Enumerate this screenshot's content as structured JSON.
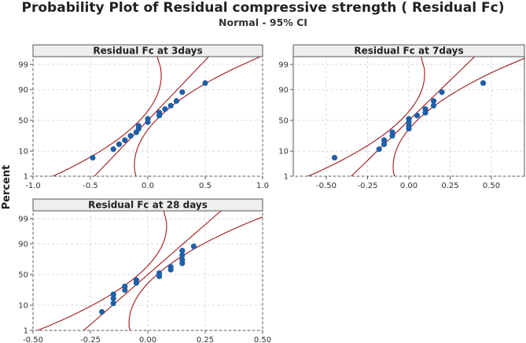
{
  "title": "Probability Plot of Residual compressive strength ( Residual Fc)",
  "subtitle": "Normal - 95% CI",
  "ylabel": "Percent",
  "colors": {
    "point": "#1f5fa8",
    "ci": "#a01818",
    "grid": "#d8d8d8",
    "axis": "#555555",
    "strip": "#eeeeee"
  },
  "chart_data": [
    {
      "type": "scatter",
      "title": "Residual Fc at 3days",
      "xlim": [
        -1.0,
        1.0
      ],
      "xticks": [
        -1.0,
        -0.5,
        0.0,
        0.5,
        1.0
      ],
      "xtick_labels": [
        "-1.0",
        "-0.5",
        "0.0",
        "0.5",
        "1.0"
      ],
      "yticks": [
        1,
        10,
        50,
        90,
        99
      ],
      "ylim_percent": [
        1,
        99
      ],
      "fit": {
        "mean": 0.0,
        "sd": 0.2
      },
      "ci_halfwidth": {
        "center": 0.07,
        "tail": 0.36
      },
      "points": [
        {
          "x": -0.48,
          "p": 6
        },
        {
          "x": -0.3,
          "p": 11.5
        },
        {
          "x": -0.25,
          "p": 16
        },
        {
          "x": -0.2,
          "p": 20.5
        },
        {
          "x": -0.15,
          "p": 26
        },
        {
          "x": -0.1,
          "p": 31
        },
        {
          "x": -0.08,
          "p": 36.5
        },
        {
          "x": -0.08,
          "p": 41
        },
        {
          "x": 0.0,
          "p": 47
        },
        {
          "x": 0.0,
          "p": 52.5
        },
        {
          "x": 0.1,
          "p": 58
        },
        {
          "x": 0.1,
          "p": 62.5
        },
        {
          "x": 0.15,
          "p": 68
        },
        {
          "x": 0.2,
          "p": 73
        },
        {
          "x": 0.25,
          "p": 79
        },
        {
          "x": 0.3,
          "p": 88
        },
        {
          "x": 0.5,
          "p": 94
        }
      ]
    },
    {
      "type": "scatter",
      "title": "Residual Fc at 7days",
      "xlim": [
        -0.7,
        0.7
      ],
      "xticks": [
        -0.5,
        -0.25,
        0.0,
        0.25,
        0.5
      ],
      "xtick_labels": [
        "-0.50",
        "-0.25",
        "0.00",
        "0.25",
        "0.50"
      ],
      "yticks": [
        1,
        10,
        50,
        90,
        99
      ],
      "ylim_percent": [
        1,
        99
      ],
      "fit": {
        "mean": 0.0,
        "sd": 0.15
      },
      "ci_halfwidth": {
        "center": 0.05,
        "tail": 0.26
      },
      "points": [
        {
          "x": -0.45,
          "p": 6
        },
        {
          "x": -0.18,
          "p": 11.5
        },
        {
          "x": -0.15,
          "p": 16
        },
        {
          "x": -0.15,
          "p": 20.5
        },
        {
          "x": -0.1,
          "p": 26
        },
        {
          "x": -0.1,
          "p": 31
        },
        {
          "x": 0.0,
          "p": 36.5
        },
        {
          "x": 0.0,
          "p": 41
        },
        {
          "x": 0.0,
          "p": 47
        },
        {
          "x": 0.0,
          "p": 52.5
        },
        {
          "x": 0.05,
          "p": 58
        },
        {
          "x": 0.1,
          "p": 62.5
        },
        {
          "x": 0.1,
          "p": 68
        },
        {
          "x": 0.15,
          "p": 73
        },
        {
          "x": 0.15,
          "p": 79
        },
        {
          "x": 0.2,
          "p": 88
        },
        {
          "x": 0.45,
          "p": 94
        }
      ]
    },
    {
      "type": "scatter",
      "title": "Residual Fc at 28 days",
      "xlim": [
        -0.5,
        0.5
      ],
      "xticks": [
        -0.5,
        -0.25,
        0.0,
        0.25,
        0.5
      ],
      "xtick_labels": [
        "-0.50",
        "-0.25",
        "0.00",
        "0.25",
        "0.50"
      ],
      "yticks": [
        1,
        10,
        50,
        90,
        99
      ],
      "ylim_percent": [
        1,
        99
      ],
      "fit": {
        "mean": 0.0,
        "sd": 0.12
      },
      "ci_halfwidth": {
        "center": 0.04,
        "tail": 0.2
      },
      "points": [
        {
          "x": -0.2,
          "p": 6
        },
        {
          "x": -0.15,
          "p": 11.5
        },
        {
          "x": -0.15,
          "p": 16
        },
        {
          "x": -0.15,
          "p": 20.5
        },
        {
          "x": -0.1,
          "p": 26
        },
        {
          "x": -0.1,
          "p": 31
        },
        {
          "x": -0.05,
          "p": 36.5
        },
        {
          "x": -0.05,
          "p": 41
        },
        {
          "x": 0.05,
          "p": 47
        },
        {
          "x": 0.05,
          "p": 52.5
        },
        {
          "x": 0.1,
          "p": 58
        },
        {
          "x": 0.1,
          "p": 62.5
        },
        {
          "x": 0.15,
          "p": 68
        },
        {
          "x": 0.15,
          "p": 73
        },
        {
          "x": 0.15,
          "p": 79
        },
        {
          "x": 0.2,
          "p": 88
        },
        {
          "x": 0.15,
          "p": 84
        }
      ]
    }
  ]
}
